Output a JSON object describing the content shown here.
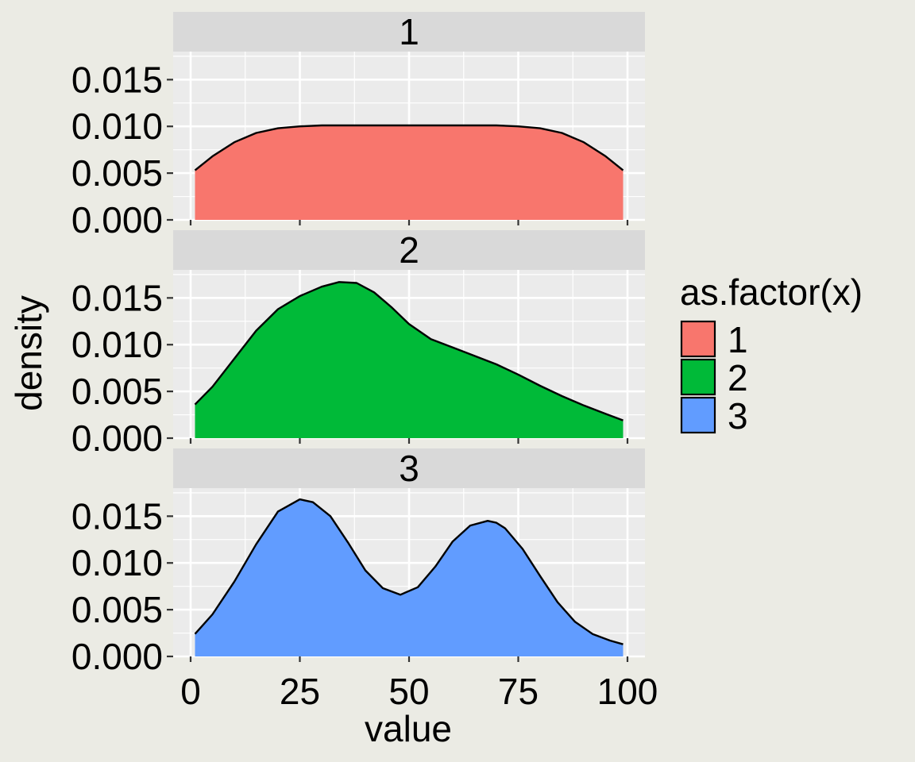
{
  "chart_data": {
    "type": "area",
    "xlabel": "value",
    "ylabel": "density",
    "xlim": [
      -4,
      104
    ],
    "ylim": [
      0,
      0.018
    ],
    "x_ticks": [
      0,
      25,
      50,
      75,
      100
    ],
    "x_tick_labels": [
      "0",
      "25",
      "50",
      "75",
      "100"
    ],
    "y_ticks": [
      0,
      0.005,
      0.01,
      0.015
    ],
    "y_tick_labels": [
      "0.000",
      "0.005",
      "0.010",
      "0.015"
    ],
    "grid": true,
    "legend": {
      "title": "as.factor(x)",
      "position": "right",
      "entries": [
        "1",
        "2",
        "3"
      ]
    },
    "panels": [
      {
        "label": "1",
        "color": "#F8766D",
        "x": [
          1,
          5,
          10,
          15,
          20,
          25,
          30,
          40,
          50,
          60,
          70,
          75,
          80,
          85,
          90,
          95,
          99
        ],
        "y": [
          0.0053,
          0.0068,
          0.0083,
          0.0093,
          0.0098,
          0.01,
          0.0101,
          0.0101,
          0.0101,
          0.0101,
          0.0101,
          0.01,
          0.0098,
          0.0093,
          0.0083,
          0.0068,
          0.0053
        ]
      },
      {
        "label": "2",
        "color": "#00BA38",
        "x": [
          1,
          5,
          10,
          15,
          20,
          25,
          30,
          34,
          38,
          42,
          46,
          50,
          55,
          60,
          65,
          70,
          75,
          80,
          85,
          90,
          95,
          99
        ],
        "y": [
          0.0036,
          0.0055,
          0.0085,
          0.0115,
          0.0138,
          0.0152,
          0.0162,
          0.0167,
          0.0166,
          0.0156,
          0.014,
          0.0122,
          0.0106,
          0.0097,
          0.0088,
          0.0079,
          0.0068,
          0.0056,
          0.0045,
          0.0035,
          0.0026,
          0.0019
        ]
      },
      {
        "label": "3",
        "color": "#619CFF",
        "x": [
          1,
          5,
          10,
          15,
          20,
          25,
          28,
          32,
          36,
          40,
          44,
          48,
          52,
          56,
          60,
          64,
          68,
          70,
          72,
          76,
          80,
          84,
          88,
          92,
          96,
          99
        ],
        "y": [
          0.0024,
          0.0045,
          0.008,
          0.012,
          0.0155,
          0.0168,
          0.0165,
          0.015,
          0.0122,
          0.0092,
          0.0073,
          0.0066,
          0.0074,
          0.0096,
          0.0123,
          0.014,
          0.0145,
          0.0143,
          0.0137,
          0.0115,
          0.0086,
          0.0058,
          0.0037,
          0.0024,
          0.0017,
          0.0013
        ]
      }
    ]
  }
}
